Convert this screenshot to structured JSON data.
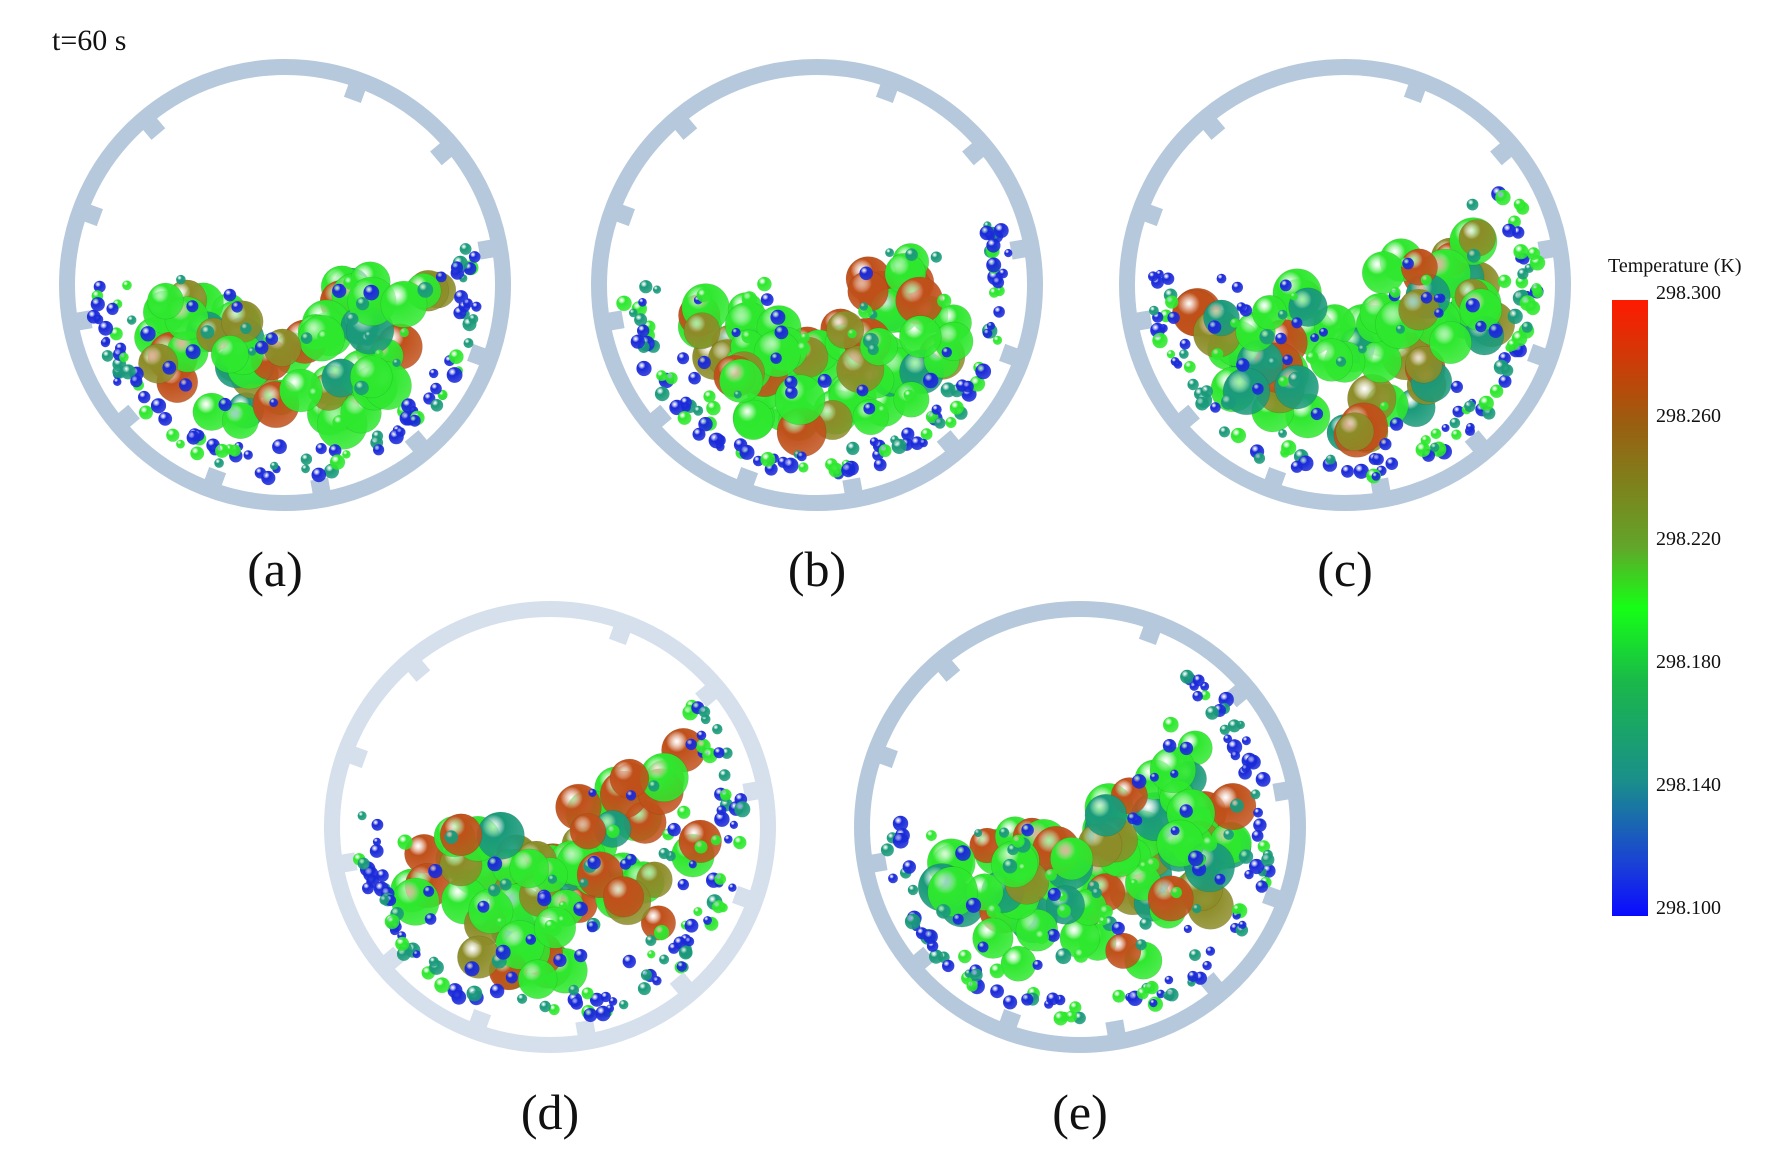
{
  "figure": {
    "time_label": "t=60 s",
    "colors": {
      "drum_rim": "#b6c8dc",
      "drum_rim_light": "#d5e0ec",
      "particle_hot": "#c0501a",
      "particle_warm": "#8c8c28",
      "particle_mid": "#2ee82e",
      "particle_cool": "#1a9a7a",
      "particle_cold": "#1a2ad8"
    },
    "panels": [
      {
        "label": "(a)",
        "fill_fraction": 0.45
      },
      {
        "label": "(b)",
        "fill_fraction": 0.55
      },
      {
        "label": "(c)",
        "fill_fraction": 0.62
      },
      {
        "label": "(d)",
        "fill_fraction": 0.72
      },
      {
        "label": "(e)",
        "fill_fraction": 0.8
      }
    ],
    "colorbar": {
      "title": "Temperature (K)",
      "ticks": [
        "298.300",
        "298.260",
        "298.220",
        "298.180",
        "298.140",
        "298.100"
      ],
      "min": 298.1,
      "max": 298.3
    }
  }
}
